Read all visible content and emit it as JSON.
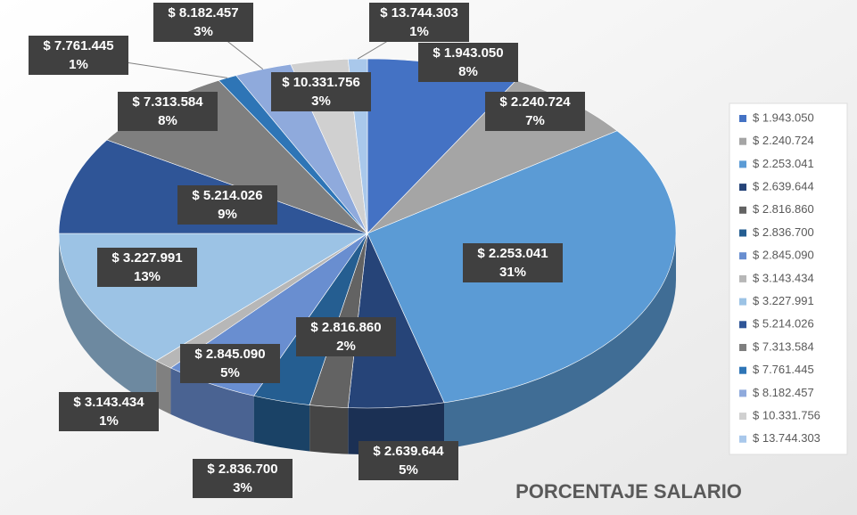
{
  "chart_data": {
    "type": "pie",
    "title": "PORCENTAJE SALARIO",
    "categories": [
      "$ 1.943.050",
      "$ 2.240.724",
      "$ 2.253.041",
      "$ 2.639.644",
      "$ 2.816.860",
      "$ 2.836.700",
      "$ 2.845.090",
      "$ 3.143.434",
      "$ 3.227.991",
      "$ 5.214.026",
      "$ 7.313.584",
      "$ 7.761.445",
      "$ 8.182.457",
      "$ 10.331.756",
      "$ 13.744.303"
    ],
    "values": [
      8,
      7,
      31,
      5,
      2,
      3,
      5,
      1,
      13,
      9,
      8,
      1,
      3,
      3,
      1
    ],
    "value_labels": [
      "8%",
      "7%",
      "31%",
      "5%",
      "2%",
      "3%",
      "5%",
      "1%",
      "13%",
      "9%",
      "8%",
      "1%",
      "3%",
      "3%",
      "1%"
    ],
    "colors": [
      "#4472c4",
      "#a5a5a5",
      "#5b9bd5",
      "#264478",
      "#636363",
      "#255e91",
      "#698ed0",
      "#b7b7b7",
      "#9cc3e5",
      "#2f5597",
      "#7f7f7f",
      "#2e75b6",
      "#8faadc",
      "#d0d0d0",
      "#a9c8eb"
    ],
    "legend": "right"
  }
}
